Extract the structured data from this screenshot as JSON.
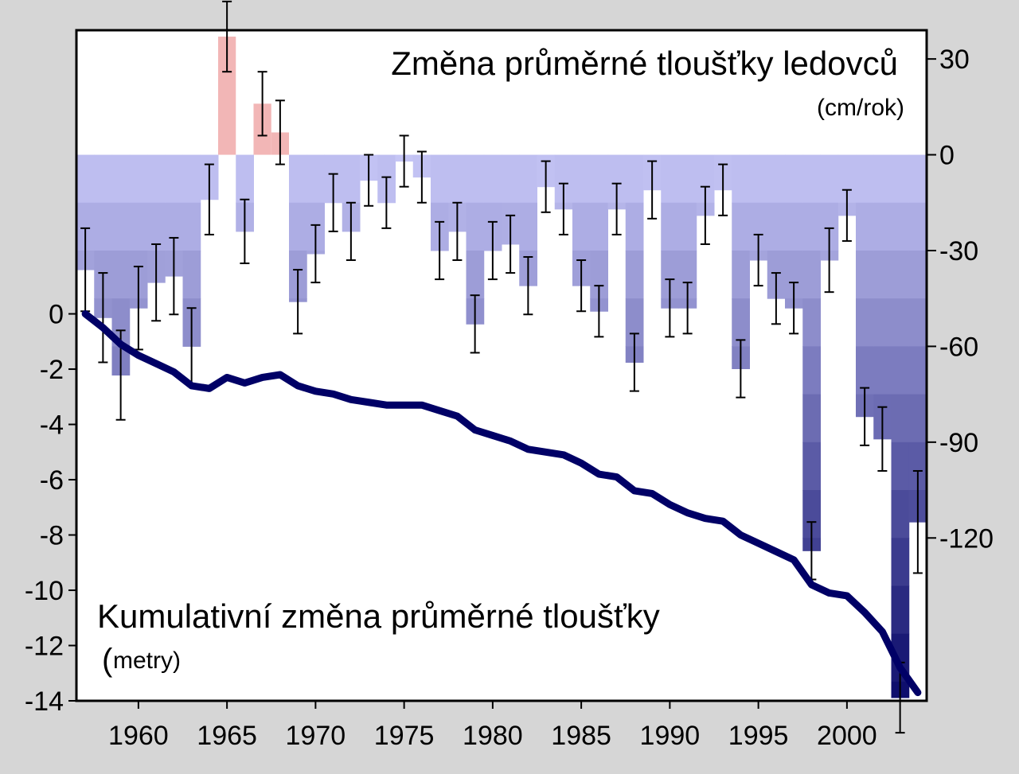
{
  "chart_data": {
    "type": "bar",
    "x": [
      1957,
      1958,
      1959,
      1960,
      1961,
      1962,
      1963,
      1964,
      1965,
      1966,
      1967,
      1968,
      1969,
      1970,
      1971,
      1972,
      1973,
      1974,
      1975,
      1976,
      1977,
      1978,
      1979,
      1980,
      1981,
      1982,
      1983,
      1984,
      1985,
      1986,
      1987,
      1988,
      1989,
      1990,
      1991,
      1992,
      1993,
      1994,
      1995,
      1996,
      1997,
      1998,
      1999,
      2000,
      2001,
      2002,
      2003,
      2004
    ],
    "series": [
      {
        "values": [
          -36,
          -51,
          -69,
          -48,
          -40,
          -38,
          -60,
          -14,
          37,
          -24,
          16,
          7,
          -46,
          -31,
          -15,
          -24,
          -8,
          -15,
          -2,
          -7,
          -30,
          -24,
          -53,
          -30,
          -28,
          -41,
          -10,
          -17,
          -41,
          -49,
          -17,
          -65,
          -11,
          -48,
          -48,
          -19,
          -11,
          -67,
          -33,
          -45,
          -48,
          -124,
          -33,
          -19,
          -82,
          -89,
          -170,
          -115
        ],
        "error": [
          13,
          14,
          14,
          13,
          12,
          12,
          12,
          11,
          11,
          10,
          10,
          10,
          10,
          9,
          9,
          9,
          8,
          8,
          8,
          8,
          9,
          9,
          9,
          9,
          9,
          9,
          8,
          8,
          8,
          8,
          8,
          9,
          9,
          9,
          8,
          9,
          8,
          9,
          8,
          8,
          8,
          9,
          10,
          8,
          9,
          10,
          11,
          16
        ]
      }
    ],
    "cumulative": [
      0,
      -0.5,
      -1.1,
      -1.5,
      -1.8,
      -2.1,
      -2.6,
      -2.7,
      -2.3,
      -2.5,
      -2.3,
      -2.2,
      -2.6,
      -2.8,
      -2.9,
      -3.1,
      -3.2,
      -3.3,
      -3.3,
      -3.3,
      -3.5,
      -3.7,
      -4.2,
      -4.4,
      -4.6,
      -4.9,
      -5.0,
      -5.1,
      -5.4,
      -5.8,
      -5.9,
      -6.4,
      -6.5,
      -6.9,
      -7.2,
      -7.4,
      -7.5,
      -8.0,
      -8.3,
      -8.6,
      -8.9,
      -9.8,
      -10.1,
      -10.2,
      -10.8,
      -11.5,
      -12.8,
      -13.7
    ],
    "title": "Změna průměrné tloušťky ledovců",
    "title_unit": "(cm/rok)",
    "cumulative_title": "Kumulativní změna průměrné tloušťky",
    "cumulative_unit_open": "(",
    "cumulative_unit": "metry)",
    "xticks": [
      1960,
      1965,
      1970,
      1975,
      1980,
      1985,
      1990,
      1995,
      2000
    ],
    "yticks_right": [
      30,
      0,
      -30,
      -60,
      -90,
      -120
    ],
    "yticks_left": [
      0,
      -2,
      -4,
      -6,
      -8,
      -10,
      -12,
      -14
    ],
    "xlim": [
      1956.5,
      2004.5
    ],
    "ylim_right": [
      -171,
      39
    ],
    "ylim_left": [
      -14,
      0
    ],
    "grid": false,
    "colors": {
      "positive": "#f2b6b6",
      "negative_light": "#c6c6f6",
      "negative_dark": "#0b0b6a",
      "line": "#000066",
      "error": "#000000"
    }
  }
}
